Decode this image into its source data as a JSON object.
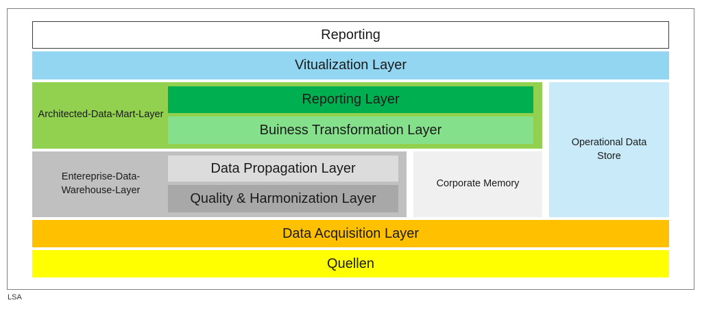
{
  "layers": {
    "reporting": "Reporting",
    "virtualization": "Vitualization Layer",
    "architected_data_mart": "Architected-Data-Mart-Layer",
    "reporting_layer": "Reporting Layer",
    "business_transformation": "Buiness Transformation Layer",
    "operational_data_store": "Operational Data Store",
    "enterprise_data_warehouse": "Entereprise-Data-Warehouse-Layer",
    "data_propagation": "Data Propagation Layer",
    "quality_harmonization": "Quality & Harmonization Layer",
    "corporate_memory": "Corporate Memory",
    "data_acquisition": "Data Acquisition Layer",
    "quellen": "Quellen"
  },
  "caption": "LSA",
  "colors": {
    "virtualization": "#92d6f2",
    "architected_data_mart": "#92d050",
    "reporting_layer": "#00b050",
    "business_transformation": "#85e08c",
    "operational_data_store": "#c9eaf9",
    "enterprise_data_warehouse": "#c0c0c0",
    "data_propagation": "#dcdcdc",
    "quality_harmonization": "#a8a8a8",
    "corporate_memory": "#f0f0f0",
    "data_acquisition": "#ffc000",
    "quellen": "#ffff00"
  }
}
